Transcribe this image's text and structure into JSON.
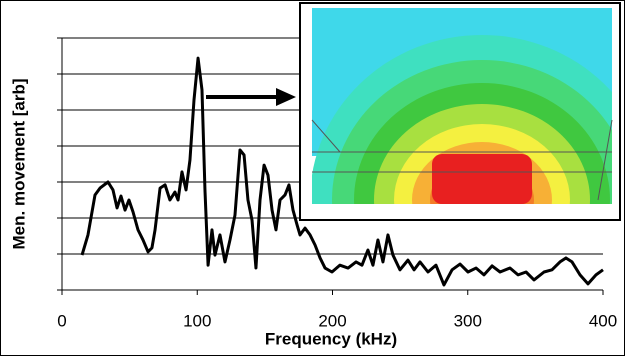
{
  "chart_data": {
    "type": "line",
    "xlabel": "Frequency (kHz)",
    "ylabel": "Men. movement [arb]",
    "color": "#000000",
    "x": [
      14.8,
      19.2,
      24.4,
      28.1,
      34,
      37.7,
      40.7,
      43.6,
      46.6,
      49.5,
      52.5,
      56.2,
      59.9,
      63.6,
      66.5,
      68.8,
      72.5,
      76.2,
      79.8,
      83.5,
      85.8,
      88.7,
      91.7,
      94.6,
      97.6,
      100.6,
      103.5,
      105.7,
      108,
      110.9,
      113.1,
      116.8,
      120.5,
      124.2,
      127.9,
      131.6,
      134.6,
      137.5,
      140.5,
      143.4,
      146.4,
      149.4,
      152.3,
      155.3,
      158.2,
      161.2,
      164.9,
      167.8,
      170.8,
      173.8,
      176,
      179.7,
      183.4,
      187.1,
      190.8,
      194.5,
      199.6,
      205.5,
      211.5,
      217.4,
      221.8,
      226.2,
      229.9,
      233.6,
      237.3,
      241,
      244.7,
      249.9,
      255.8,
      260.3,
      264.7,
      270.6,
      276.5,
      282.4,
      288.4,
      294.3,
      300.2,
      306.1,
      312,
      318,
      323.9,
      331.2,
      337.2,
      343.1,
      349,
      356.4,
      362.3,
      368.2,
      372.6,
      377.1,
      383,
      388.9,
      394.8,
      400
    ],
    "values": [
      0.97,
      1.53,
      2.64,
      2.83,
      3,
      2.78,
      2.28,
      2.61,
      2.22,
      2.5,
      2.17,
      1.67,
      1.39,
      1.06,
      1.17,
      1.67,
      2.83,
      2.92,
      2.5,
      2.72,
      2.5,
      3.28,
      2.78,
      3.61,
      5.28,
      6.44,
      5.56,
      2.78,
      0.69,
      1.67,
      0.97,
      1.53,
      0.78,
      1.39,
      2.08,
      3.89,
      3.75,
      2.5,
      1.94,
      0.61,
      2.5,
      3.47,
      3.19,
      2.22,
      1.67,
      2.5,
      2.64,
      2.92,
      2.22,
      1.81,
      1.53,
      1.72,
      1.53,
      1.25,
      0.89,
      0.61,
      0.5,
      0.69,
      0.61,
      0.78,
      0.69,
      1.11,
      0.69,
      1.39,
      0.78,
      1.53,
      0.97,
      0.56,
      0.83,
      0.56,
      0.78,
      0.5,
      0.69,
      0.14,
      0.56,
      0.72,
      0.5,
      0.61,
      0.42,
      0.67,
      0.5,
      0.61,
      0.42,
      0.5,
      0.28,
      0.5,
      0.56,
      0.78,
      0.89,
      0.78,
      0.42,
      0.17,
      0.42,
      0.56
    ],
    "xlim": [
      0,
      400
    ],
    "xticks": [
      0,
      100,
      200,
      300,
      400
    ],
    "ylim": [
      0,
      7
    ],
    "yticks": [
      0,
      1,
      2,
      3,
      4,
      5,
      6,
      7
    ],
    "grid": true
  }
}
